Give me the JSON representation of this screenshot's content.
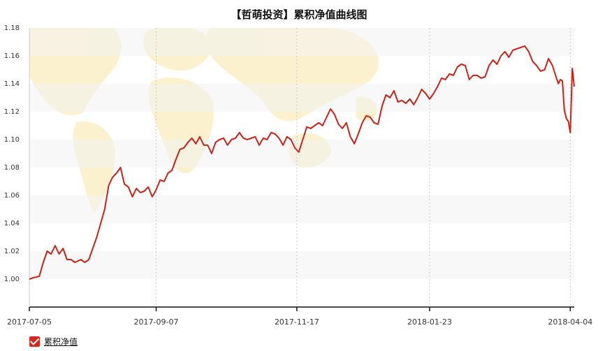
{
  "chart_data": {
    "type": "line",
    "title": "【哲萌投资】累积净值曲线图",
    "xlabel": "",
    "ylabel": "",
    "x_tick_labels": [
      "2017-07-05",
      "2017-09-07",
      "2017-11-17",
      "2018-01-23",
      "2018-04-04"
    ],
    "x_range": [
      "2017-07-05",
      "2018-04-06"
    ],
    "y_ticks": [
      "1.00",
      "1.02",
      "1.04",
      "1.06",
      "1.08",
      "1.10",
      "1.12",
      "1.14",
      "1.16",
      "1.18"
    ],
    "ylim": [
      0.98,
      1.18
    ],
    "grid": "vertical dotted lines at x ticks, alternating horizontal bands",
    "legend": "bottom-left",
    "series": [
      {
        "name": "累积净值",
        "color": "#c9241b",
        "points": [
          [
            "2017-07-05",
            1.0
          ],
          [
            "2017-07-07",
            1.001
          ],
          [
            "2017-07-10",
            1.002
          ],
          [
            "2017-07-12",
            1.012
          ],
          [
            "2017-07-14",
            1.02
          ],
          [
            "2017-07-16",
            1.018
          ],
          [
            "2017-07-18",
            1.024
          ],
          [
            "2017-07-20",
            1.018
          ],
          [
            "2017-07-22",
            1.022
          ],
          [
            "2017-07-24",
            1.014
          ],
          [
            "2017-07-26",
            1.014
          ],
          [
            "2017-07-28",
            1.012
          ],
          [
            "2017-07-31",
            1.014
          ],
          [
            "2017-08-02",
            1.012
          ],
          [
            "2017-08-04",
            1.014
          ],
          [
            "2017-08-06",
            1.022
          ],
          [
            "2017-08-08",
            1.03
          ],
          [
            "2017-08-10",
            1.04
          ],
          [
            "2017-08-12",
            1.05
          ],
          [
            "2017-08-14",
            1.067
          ],
          [
            "2017-08-16",
            1.073
          ],
          [
            "2017-08-18",
            1.076
          ],
          [
            "2017-08-20",
            1.08
          ],
          [
            "2017-08-22",
            1.068
          ],
          [
            "2017-08-24",
            1.066
          ],
          [
            "2017-08-26",
            1.059
          ],
          [
            "2017-08-28",
            1.065
          ],
          [
            "2017-08-30",
            1.062
          ],
          [
            "2017-09-01",
            1.063
          ],
          [
            "2017-09-03",
            1.066
          ],
          [
            "2017-09-05",
            1.059
          ],
          [
            "2017-09-07",
            1.064
          ],
          [
            "2017-09-09",
            1.071
          ],
          [
            "2017-09-11",
            1.07
          ],
          [
            "2017-09-13",
            1.076
          ],
          [
            "2017-09-15",
            1.078
          ],
          [
            "2017-09-17",
            1.086
          ],
          [
            "2017-09-19",
            1.093
          ],
          [
            "2017-09-21",
            1.094
          ],
          [
            "2017-09-23",
            1.098
          ],
          [
            "2017-09-25",
            1.101
          ],
          [
            "2017-09-27",
            1.097
          ],
          [
            "2017-09-29",
            1.102
          ],
          [
            "2017-10-01",
            1.096
          ],
          [
            "2017-10-03",
            1.096
          ],
          [
            "2017-10-05",
            1.09
          ],
          [
            "2017-10-07",
            1.098
          ],
          [
            "2017-10-09",
            1.1
          ],
          [
            "2017-10-11",
            1.101
          ],
          [
            "2017-10-13",
            1.096
          ],
          [
            "2017-10-15",
            1.1
          ],
          [
            "2017-10-17",
            1.101
          ],
          [
            "2017-10-19",
            1.105
          ],
          [
            "2017-10-21",
            1.101
          ],
          [
            "2017-10-23",
            1.1
          ],
          [
            "2017-10-25",
            1.101
          ],
          [
            "2017-10-27",
            1.102
          ],
          [
            "2017-10-29",
            1.096
          ],
          [
            "2017-10-31",
            1.101
          ],
          [
            "2017-11-02",
            1.1
          ],
          [
            "2017-11-04",
            1.105
          ],
          [
            "2017-11-06",
            1.104
          ],
          [
            "2017-11-08",
            1.101
          ],
          [
            "2017-11-10",
            1.096
          ],
          [
            "2017-11-12",
            1.102
          ],
          [
            "2017-11-14",
            1.1
          ],
          [
            "2017-11-16",
            1.094
          ],
          [
            "2017-11-18",
            1.091
          ],
          [
            "2017-11-20",
            1.1
          ],
          [
            "2017-11-22",
            1.109
          ],
          [
            "2017-11-24",
            1.108
          ],
          [
            "2017-11-26",
            1.11
          ],
          [
            "2017-11-28",
            1.112
          ],
          [
            "2017-11-30",
            1.11
          ],
          [
            "2017-12-02",
            1.116
          ],
          [
            "2017-12-04",
            1.122
          ],
          [
            "2017-12-06",
            1.118
          ],
          [
            "2017-12-08",
            1.111
          ],
          [
            "2017-12-10",
            1.108
          ],
          [
            "2017-12-12",
            1.112
          ],
          [
            "2017-12-14",
            1.102
          ],
          [
            "2017-12-16",
            1.097
          ],
          [
            "2017-12-18",
            1.104
          ],
          [
            "2017-12-20",
            1.112
          ],
          [
            "2017-12-22",
            1.117
          ],
          [
            "2017-12-24",
            1.116
          ],
          [
            "2017-12-26",
            1.112
          ],
          [
            "2017-12-28",
            1.111
          ],
          [
            "2017-12-30",
            1.124
          ],
          [
            "2018-01-01",
            1.132
          ],
          [
            "2018-01-03",
            1.13
          ],
          [
            "2018-01-05",
            1.135
          ],
          [
            "2018-01-07",
            1.127
          ],
          [
            "2018-01-09",
            1.128
          ],
          [
            "2018-01-11",
            1.126
          ],
          [
            "2018-01-13",
            1.129
          ],
          [
            "2018-01-15",
            1.125
          ],
          [
            "2018-01-17",
            1.13
          ],
          [
            "2018-01-19",
            1.136
          ],
          [
            "2018-01-21",
            1.133
          ],
          [
            "2018-01-23",
            1.129
          ],
          [
            "2018-01-25",
            1.133
          ],
          [
            "2018-01-27",
            1.138
          ],
          [
            "2018-01-29",
            1.144
          ],
          [
            "2018-01-31",
            1.143
          ],
          [
            "2018-02-02",
            1.147
          ],
          [
            "2018-02-04",
            1.146
          ],
          [
            "2018-02-06",
            1.152
          ],
          [
            "2018-02-08",
            1.154
          ],
          [
            "2018-02-10",
            1.153
          ],
          [
            "2018-02-12",
            1.143
          ],
          [
            "2018-02-14",
            1.146
          ],
          [
            "2018-02-16",
            1.146
          ],
          [
            "2018-02-18",
            1.144
          ],
          [
            "2018-02-20",
            1.145
          ],
          [
            "2018-02-22",
            1.153
          ],
          [
            "2018-02-24",
            1.157
          ],
          [
            "2018-02-26",
            1.154
          ],
          [
            "2018-02-28",
            1.16
          ],
          [
            "2018-03-02",
            1.163
          ],
          [
            "2018-03-04",
            1.159
          ],
          [
            "2018-03-06",
            1.164
          ],
          [
            "2018-03-08",
            1.165
          ],
          [
            "2018-03-10",
            1.166
          ],
          [
            "2018-03-12",
            1.167
          ],
          [
            "2018-03-14",
            1.163
          ],
          [
            "2018-03-16",
            1.156
          ],
          [
            "2018-03-18",
            1.153
          ],
          [
            "2018-03-20",
            1.149
          ],
          [
            "2018-03-22",
            1.15
          ],
          [
            "2018-03-24",
            1.158
          ],
          [
            "2018-03-26",
            1.153
          ],
          [
            "2018-03-28",
            1.144
          ],
          [
            "2018-03-29",
            1.14
          ],
          [
            "2018-03-30",
            1.143
          ],
          [
            "2018-03-31",
            1.142
          ],
          [
            "2018-04-01",
            1.121
          ],
          [
            "2018-04-02",
            1.115
          ],
          [
            "2018-04-03",
            1.113
          ],
          [
            "2018-04-04",
            1.105
          ],
          [
            "2018-04-05",
            1.151
          ],
          [
            "2018-04-06",
            1.138
          ]
        ]
      }
    ]
  },
  "legend": {
    "label": "累积净值",
    "checked": true
  }
}
